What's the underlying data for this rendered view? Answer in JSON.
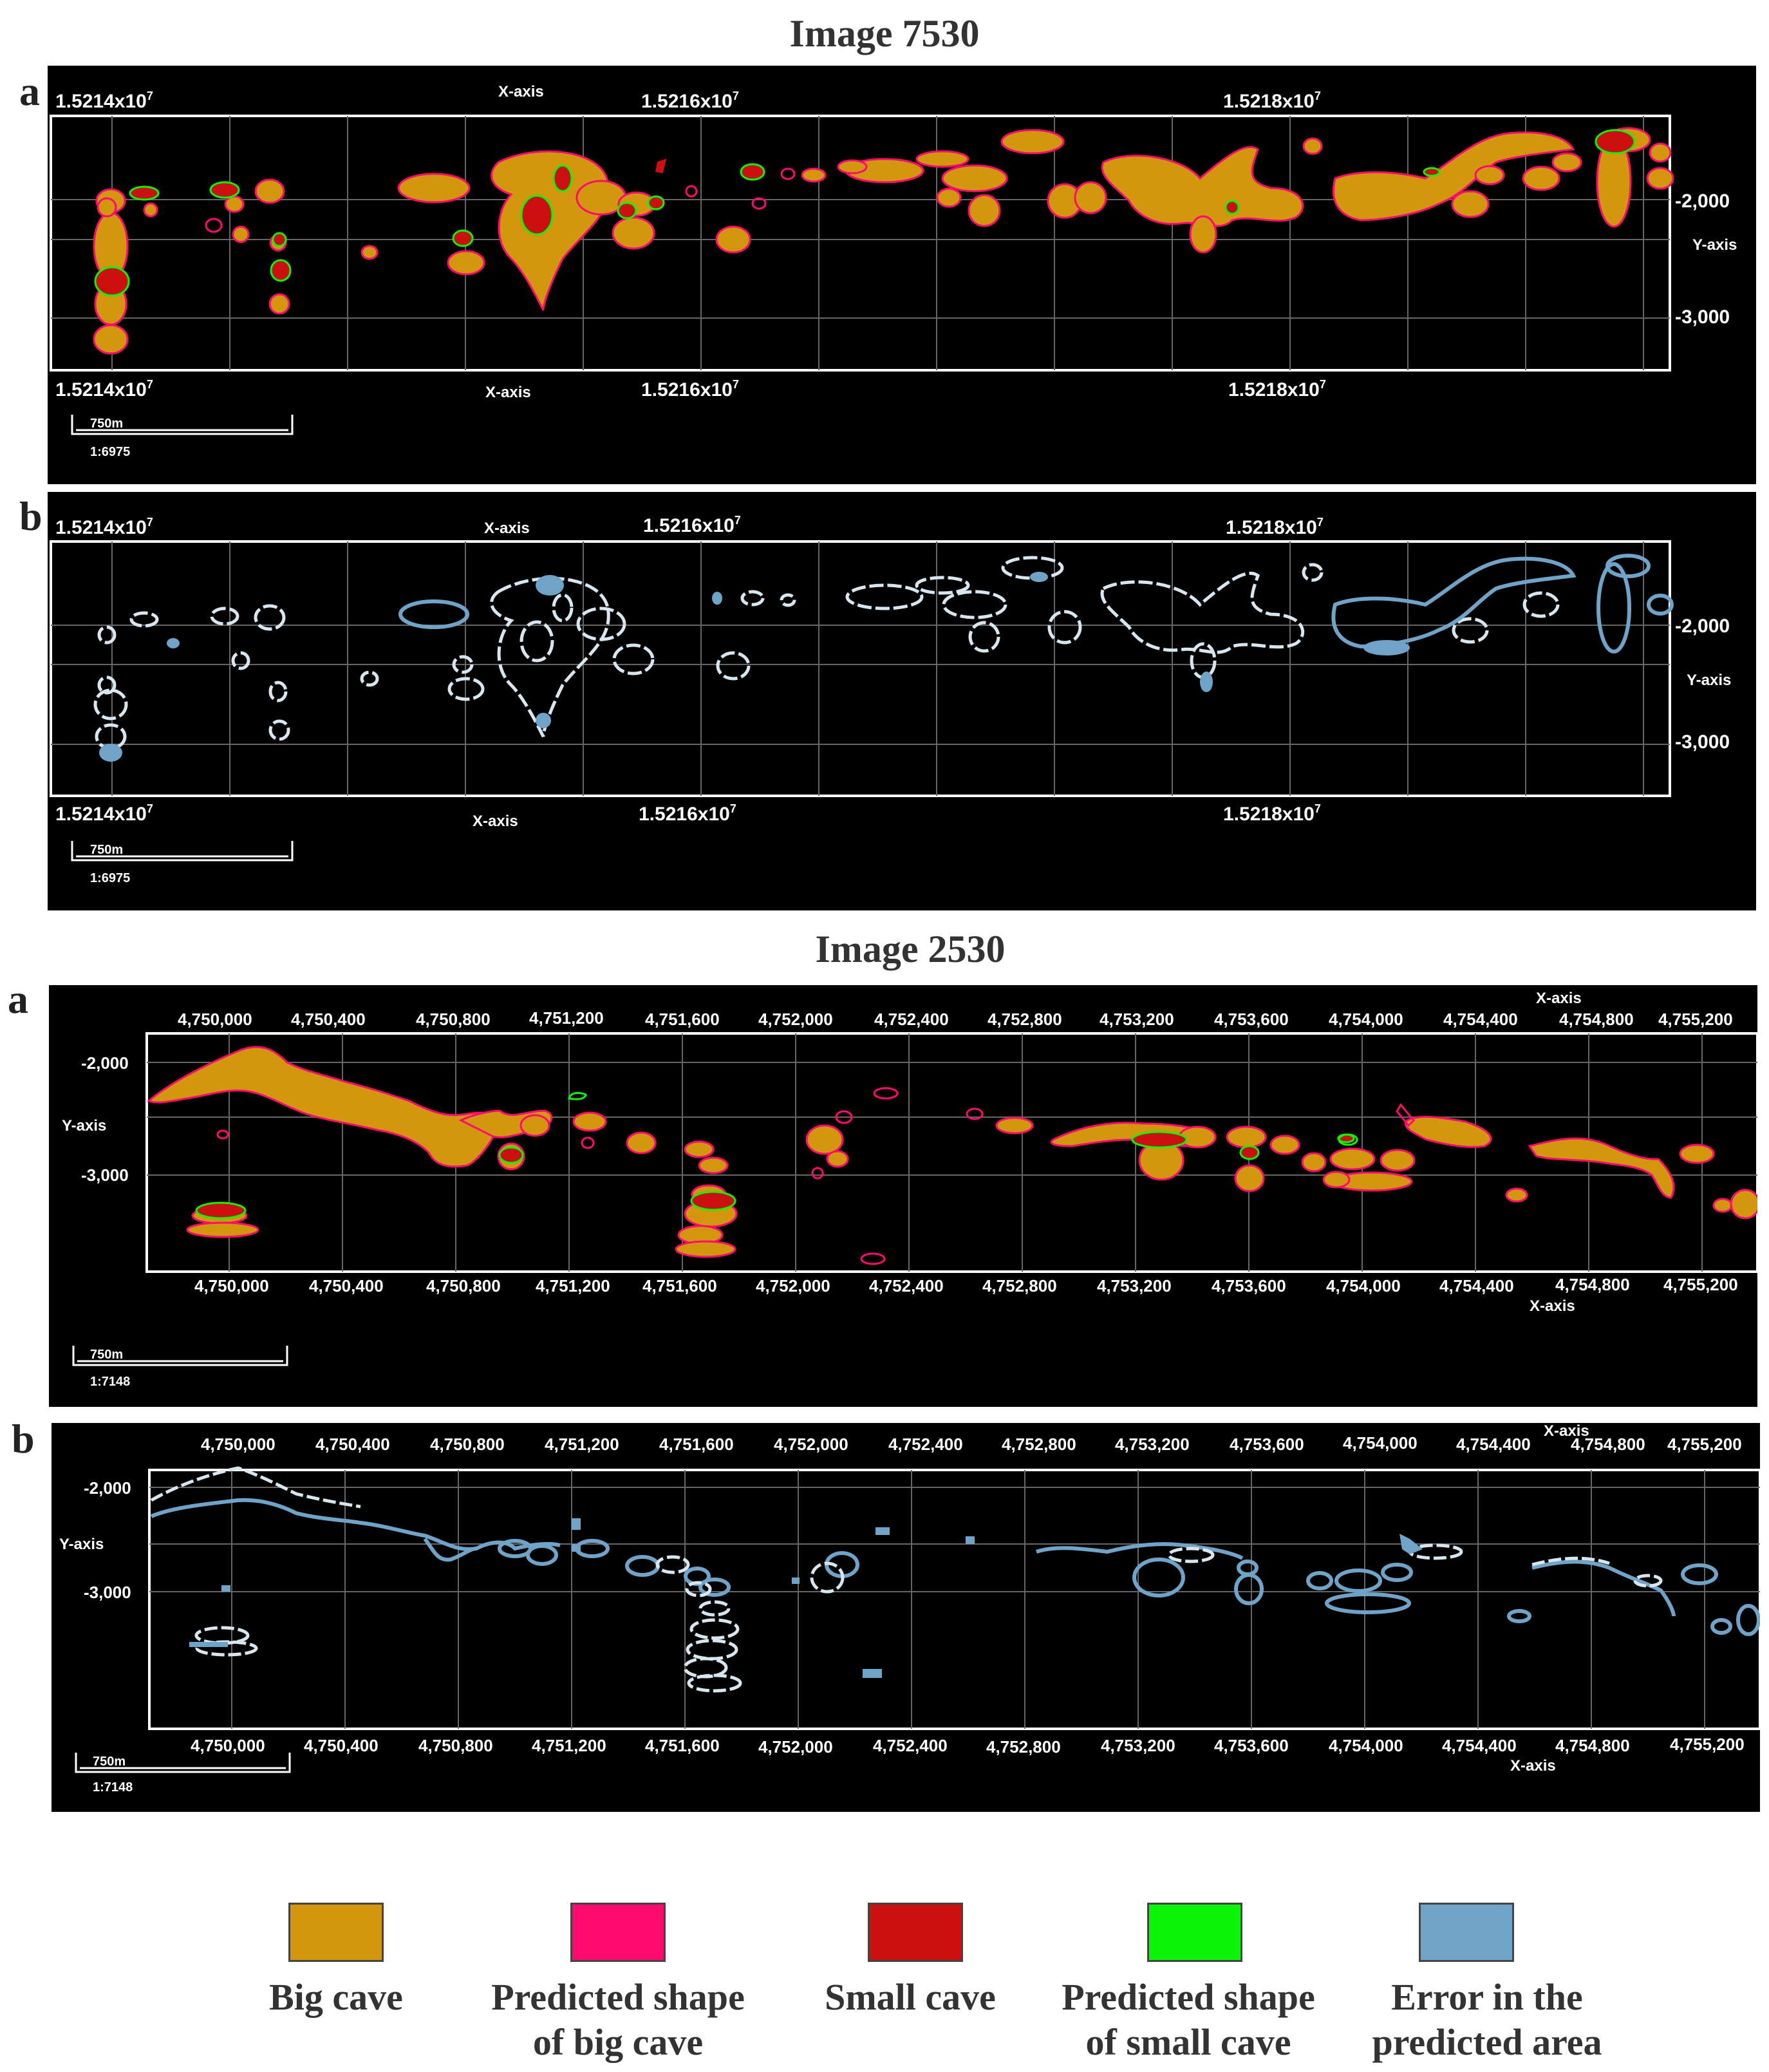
{
  "figures": [
    {
      "title": "Image 7530",
      "panels": [
        {
          "letter": "a",
          "top_x_labels": [
            "1.5214x10",
            "1.5216x10",
            "1.5218x10"
          ],
          "bottom_x_labels": [
            "1.5214x10",
            "1.5216x10",
            "1.5218x10"
          ],
          "x_exponent": "7",
          "x_axis_label": "X-axis",
          "y_axis_label": "Y-axis",
          "y_ticks": [
            "-2,000",
            "-3,000"
          ],
          "scale_label": "750m",
          "scale_ratio": "1:6975"
        },
        {
          "letter": "b",
          "top_x_labels": [
            "1.5214x10",
            "1.5216x10",
            "1.5218x10"
          ],
          "bottom_x_labels": [
            "1.5214x10",
            "1.5216x10",
            "1.5218x10"
          ],
          "x_exponent": "7",
          "x_axis_label": "X-axis",
          "y_axis_label": "Y-axis",
          "y_ticks": [
            "-2,000",
            "-3,000"
          ],
          "scale_label": "750m",
          "scale_ratio": "1:6975"
        }
      ]
    },
    {
      "title": "Image 2530",
      "x_ticks": [
        "4,750,000",
        "4,750,400",
        "4,750,800",
        "4,751,200",
        "4,751,600",
        "4,752,000",
        "4,752,400",
        "4,752,800",
        "4,753,200",
        "4,753,600",
        "4,754,000",
        "4,754,400",
        "4,754,800",
        "4,755,200"
      ],
      "panels": [
        {
          "letter": "a",
          "x_axis_label": "X-axis",
          "y_axis_label": "Y-axis",
          "y_ticks": [
            "-2,000",
            "-3,000"
          ],
          "scale_label": "750m",
          "scale_ratio": "1:7148"
        },
        {
          "letter": "b",
          "x_axis_label": "X-axis",
          "y_axis_label": "Y-axis",
          "y_ticks": [
            "-2,000",
            "-3,000"
          ],
          "scale_label": "750m",
          "scale_ratio": "1:7148"
        }
      ]
    }
  ],
  "legend": [
    {
      "label_line1": "Big cave",
      "label_line2": "",
      "color": "#d4960f"
    },
    {
      "label_line1": "Predicted shape",
      "label_line2": "of big cave",
      "color": "#ff0a6e"
    },
    {
      "label_line1": "Small cave",
      "label_line2": "",
      "color": "#cc0f0f"
    },
    {
      "label_line1": "Predicted shape",
      "label_line2": "of small cave",
      "color": "#0af50a"
    },
    {
      "label_line1": "Error in the",
      "label_line2": "predicted area",
      "color": "#6fa3c8"
    }
  ]
}
